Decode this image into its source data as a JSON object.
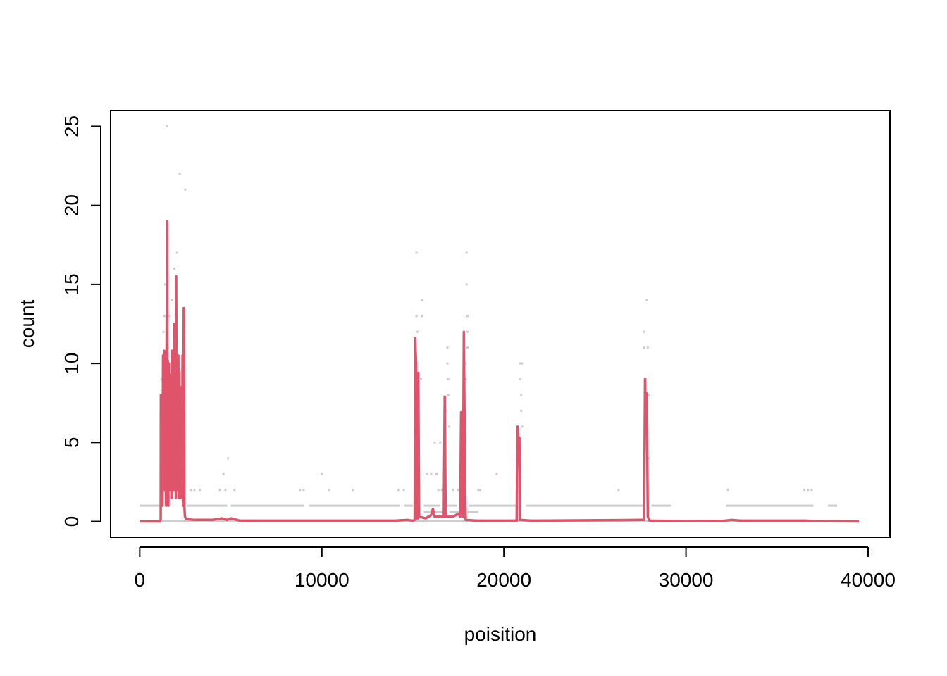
{
  "chart_data": {
    "type": "line",
    "xlabel": "poisition",
    "ylabel": "count",
    "xlim": [
      -1600,
      41200
    ],
    "ylim": [
      -1,
      26
    ],
    "x_ticks": [
      0,
      10000,
      20000,
      30000,
      40000
    ],
    "y_ticks": [
      0,
      5,
      10,
      15,
      20,
      25
    ],
    "x_tick_labels": [
      "0",
      "10000",
      "20000",
      "30000",
      "40000"
    ],
    "y_tick_labels": [
      "0",
      "5",
      "10",
      "15",
      "20",
      "25"
    ],
    "grid": false,
    "colors": {
      "raw_points": "#cccccc",
      "smoothed_line": "#df536b"
    },
    "series": [
      {
        "kind": "points",
        "baseline_runs": [
          [
            0,
            1100,
            1
          ],
          [
            2600,
            4800,
            1
          ],
          [
            5000,
            9000,
            1
          ],
          [
            9300,
            14300,
            1
          ],
          [
            14500,
            15000,
            1
          ],
          [
            15600,
            16500,
            1
          ],
          [
            16800,
            17400,
            1
          ],
          [
            18100,
            20700,
            1
          ],
          [
            21200,
            27700,
            1
          ],
          [
            28100,
            29200,
            1
          ],
          [
            32200,
            37000,
            1
          ],
          [
            37800,
            38300,
            1
          ],
          [
            15600,
            16900,
            0.6
          ],
          [
            17000,
            17700,
            0.6
          ],
          [
            18000,
            18600,
            0.6
          ]
        ],
        "points": [
          [
            1500,
            25
          ],
          [
            2200,
            22
          ],
          [
            2500,
            21
          ],
          [
            2050,
            17
          ],
          [
            1900,
            16
          ],
          [
            1400,
            15
          ],
          [
            1750,
            14
          ],
          [
            1350,
            13
          ],
          [
            1600,
            13
          ],
          [
            2450,
            12
          ],
          [
            1300,
            12
          ],
          [
            1550,
            11
          ],
          [
            1200,
            9
          ],
          [
            1250,
            7
          ],
          [
            2000,
            14
          ],
          [
            4600,
            3
          ],
          [
            4850,
            4
          ],
          [
            4400,
            2
          ],
          [
            4700,
            2
          ],
          [
            5200,
            2
          ],
          [
            3000,
            2
          ],
          [
            3300,
            2
          ],
          [
            2800,
            2
          ],
          [
            8800,
            2
          ],
          [
            9000,
            2
          ],
          [
            10000,
            3
          ],
          [
            10400,
            2
          ],
          [
            11700,
            2
          ],
          [
            14200,
            2
          ],
          [
            14500,
            2
          ],
          [
            15200,
            17
          ],
          [
            15200,
            13
          ],
          [
            15250,
            12
          ],
          [
            15500,
            14
          ],
          [
            15500,
            13
          ],
          [
            15450,
            9
          ],
          [
            16200,
            5
          ],
          [
            16500,
            5
          ],
          [
            15800,
            3
          ],
          [
            16000,
            3
          ],
          [
            16300,
            3
          ],
          [
            16600,
            2
          ],
          [
            16900,
            11
          ],
          [
            16900,
            10
          ],
          [
            16950,
            9
          ],
          [
            16950,
            8
          ],
          [
            16800,
            7
          ],
          [
            17000,
            6
          ],
          [
            16400,
            2
          ],
          [
            16700,
            2
          ],
          [
            17200,
            2
          ],
          [
            17500,
            2
          ],
          [
            17700,
            5
          ],
          [
            17700,
            7
          ],
          [
            17800,
            6
          ],
          [
            17850,
            10
          ],
          [
            17950,
            17
          ],
          [
            17950,
            15
          ],
          [
            18000,
            13
          ],
          [
            18000,
            12
          ],
          [
            17900,
            9
          ],
          [
            18000,
            11
          ],
          [
            18600,
            2
          ],
          [
            18700,
            2
          ],
          [
            19600,
            3
          ],
          [
            20900,
            10
          ],
          [
            21000,
            10
          ],
          [
            20900,
            9
          ],
          [
            20950,
            8
          ],
          [
            20950,
            7
          ],
          [
            21000,
            6
          ],
          [
            26300,
            2
          ],
          [
            27700,
            12
          ],
          [
            27700,
            11
          ],
          [
            27850,
            14
          ],
          [
            27800,
            9
          ],
          [
            27900,
            11
          ],
          [
            27950,
            8
          ],
          [
            27950,
            4
          ],
          [
            32300,
            2
          ],
          [
            36500,
            2
          ],
          [
            36700,
            2
          ],
          [
            36900,
            2
          ]
        ]
      },
      {
        "kind": "line",
        "anchors": [
          [
            0,
            0
          ],
          [
            1100,
            0
          ],
          [
            1150,
            0.1
          ],
          [
            1160,
            8
          ],
          [
            1200,
            2
          ],
          [
            1230,
            8
          ],
          [
            1250,
            1
          ],
          [
            1280,
            10.5
          ],
          [
            1310,
            3
          ],
          [
            1340,
            10.8
          ],
          [
            1370,
            2
          ],
          [
            1400,
            10.3
          ],
          [
            1430,
            4
          ],
          [
            1450,
            1
          ],
          [
            1470,
            9
          ],
          [
            1500,
            19
          ],
          [
            1520,
            4
          ],
          [
            1540,
            10.2
          ],
          [
            1570,
            1
          ],
          [
            1600,
            10
          ],
          [
            1620,
            3
          ],
          [
            1650,
            9
          ],
          [
            1680,
            2
          ],
          [
            1710,
            9.3
          ],
          [
            1740,
            1.5
          ],
          [
            1770,
            10.8
          ],
          [
            1800,
            3
          ],
          [
            1830,
            9.5
          ],
          [
            1860,
            2
          ],
          [
            1890,
            12.5
          ],
          [
            1920,
            3
          ],
          [
            1950,
            9.3
          ],
          [
            1980,
            1.5
          ],
          [
            2000,
            15.5
          ],
          [
            2030,
            4
          ],
          [
            2060,
            10.5
          ],
          [
            2090,
            2
          ],
          [
            2120,
            10.5
          ],
          [
            2150,
            1.5
          ],
          [
            2180,
            9.5
          ],
          [
            2210,
            3
          ],
          [
            2240,
            8.5
          ],
          [
            2270,
            1.5
          ],
          [
            2300,
            6
          ],
          [
            2330,
            2
          ],
          [
            2350,
            10.5
          ],
          [
            2380,
            1
          ],
          [
            2420,
            13.5
          ],
          [
            2450,
            1
          ],
          [
            2480,
            0.3
          ],
          [
            2550,
            0.15
          ],
          [
            3000,
            0.1
          ],
          [
            4000,
            0.1
          ],
          [
            4500,
            0.2
          ],
          [
            4800,
            0.1
          ],
          [
            5000,
            0.2
          ],
          [
            5500,
            0.05
          ],
          [
            8000,
            0.05
          ],
          [
            10000,
            0.05
          ],
          [
            14000,
            0.05
          ],
          [
            14700,
            0.1
          ],
          [
            15000,
            0.05
          ],
          [
            15100,
            0.1
          ],
          [
            15120,
            11.6
          ],
          [
            15180,
            10
          ],
          [
            15220,
            0.2
          ],
          [
            15280,
            0.2
          ],
          [
            15300,
            9.4
          ],
          [
            15340,
            0.3
          ],
          [
            15700,
            0.2
          ],
          [
            16000,
            0.4
          ],
          [
            16100,
            0.8
          ],
          [
            16200,
            0.3
          ],
          [
            16600,
            0.3
          ],
          [
            16700,
            0.3
          ],
          [
            16750,
            7.9
          ],
          [
            16800,
            0.3
          ],
          [
            17200,
            0.3
          ],
          [
            17500,
            0.5
          ],
          [
            17600,
            0.3
          ],
          [
            17650,
            6.9
          ],
          [
            17700,
            5
          ],
          [
            17750,
            0.3
          ],
          [
            17800,
            12
          ],
          [
            17870,
            2
          ],
          [
            17900,
            0.1
          ],
          [
            18500,
            0.05
          ],
          [
            20700,
            0.05
          ],
          [
            20750,
            6
          ],
          [
            20800,
            5
          ],
          [
            20850,
            5.3
          ],
          [
            20900,
            0.1
          ],
          [
            21500,
            0.05
          ],
          [
            27600,
            0.1
          ],
          [
            27700,
            0.1
          ],
          [
            27750,
            9
          ],
          [
            27800,
            6
          ],
          [
            27850,
            8.1
          ],
          [
            27900,
            0.3
          ],
          [
            28000,
            0.05
          ],
          [
            30000,
            0.02
          ],
          [
            32000,
            0.03
          ],
          [
            32500,
            0.1
          ],
          [
            33000,
            0.05
          ],
          [
            36600,
            0.05
          ],
          [
            37000,
            0.02
          ],
          [
            39500,
            0
          ]
        ]
      }
    ]
  }
}
